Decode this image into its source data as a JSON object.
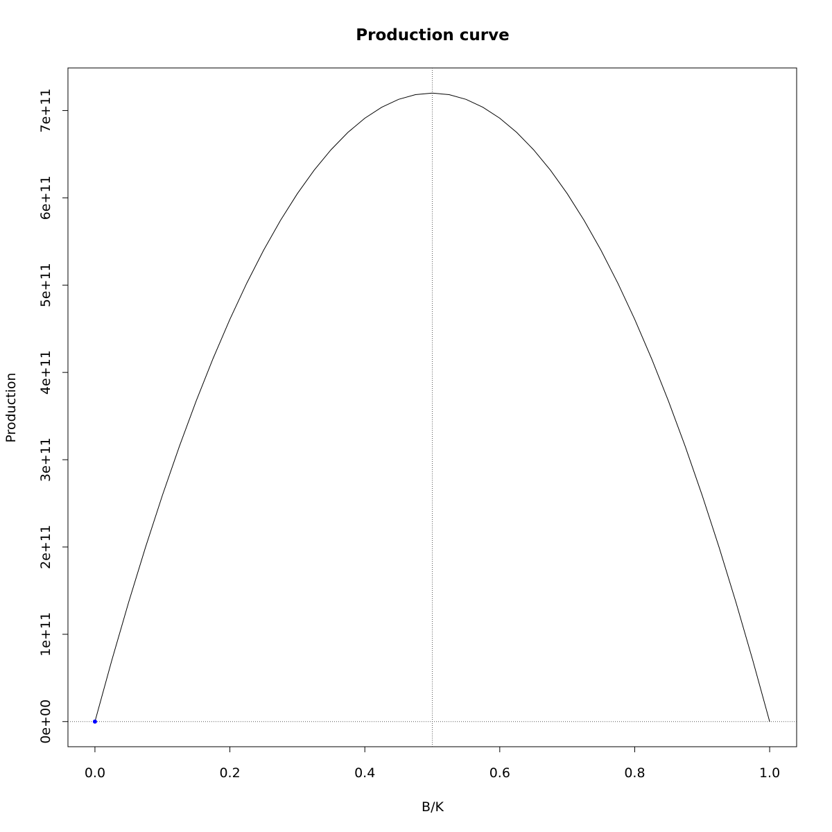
{
  "chart_data": {
    "type": "line",
    "title": "Production curve",
    "xlabel": "B/K",
    "ylabel": "Production",
    "x": [
      0,
      0.025,
      0.05,
      0.075,
      0.1,
      0.125,
      0.15,
      0.175,
      0.2,
      0.225,
      0.25,
      0.275,
      0.3,
      0.325,
      0.35,
      0.375,
      0.4,
      0.425,
      0.45,
      0.475,
      0.5,
      0.525,
      0.55,
      0.575,
      0.6,
      0.625,
      0.65,
      0.675,
      0.7,
      0.725,
      0.75,
      0.775,
      0.8,
      0.825,
      0.85,
      0.875,
      0.9,
      0.925,
      0.95,
      0.975,
      1
    ],
    "values": [
      0,
      70200000000,
      136800000000,
      199800000000,
      259200000000,
      315000000000,
      367200000000,
      415800000000,
      460800000000,
      502200000000,
      540000000000,
      574200000000,
      604800000000,
      631800000000,
      655200000000,
      675000000000,
      691200000000,
      703800000000,
      712800000000,
      718200000000,
      720000000000,
      718200000000,
      712800000000,
      703800000000,
      691200000000,
      675000000000,
      655200000000,
      631800000000,
      604800000000,
      574200000000,
      540000000000,
      502200000000,
      460800000000,
      415800000000,
      367200000000,
      315000000000,
      259200000000,
      199800000000,
      136800000000,
      70200000000,
      0
    ],
    "color": "#000000",
    "points": {
      "x": [
        0
      ],
      "values": [
        0
      ],
      "color": "#0000ff"
    },
    "vlines": [
      0.5
    ],
    "hlines": [
      0
    ],
    "xlim": [
      -0.04,
      1.04
    ],
    "ylim": [
      -28800000000,
      748800000000
    ],
    "xticks": [
      {
        "value": 0,
        "label": "0.0"
      },
      {
        "value": 0.2,
        "label": "0.2"
      },
      {
        "value": 0.4,
        "label": "0.4"
      },
      {
        "value": 0.6,
        "label": "0.6"
      },
      {
        "value": 0.8,
        "label": "0.8"
      },
      {
        "value": 1,
        "label": "1.0"
      }
    ],
    "yticks": [
      {
        "value": 0,
        "label": "0e+00"
      },
      {
        "value": 100000000000,
        "label": "1e+11"
      },
      {
        "value": 200000000000,
        "label": "2e+11"
      },
      {
        "value": 300000000000,
        "label": "3e+11"
      },
      {
        "value": 400000000000,
        "label": "4e+11"
      },
      {
        "value": 500000000000,
        "label": "5e+11"
      },
      {
        "value": 600000000000,
        "label": "6e+11"
      },
      {
        "value": 700000000000,
        "label": "7e+11"
      }
    ]
  }
}
